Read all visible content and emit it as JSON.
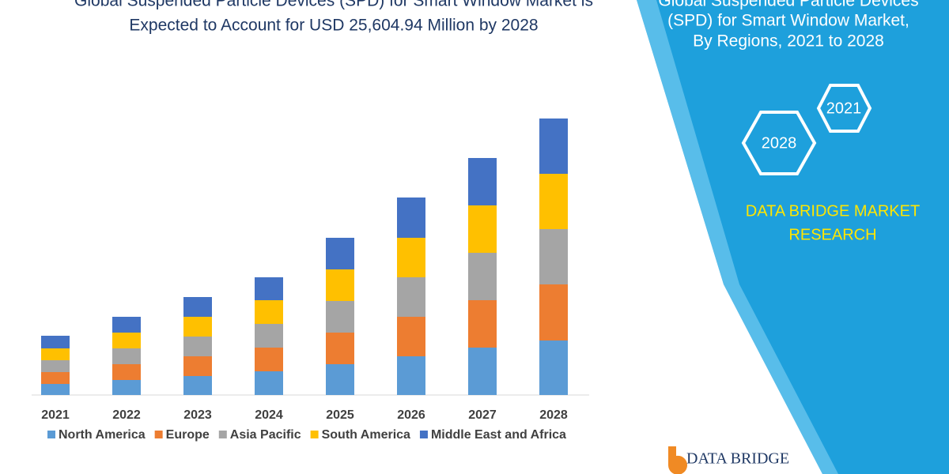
{
  "chart_data": {
    "type": "stacked_bar",
    "title": [
      "Global Suspended Particle Devices (SPD) for Smart Window Market is",
      "Expected to Account for USD 25,604.94 Million by 2028"
    ],
    "categories": [
      "2021",
      "2022",
      "2023",
      "2024",
      "2025",
      "2026",
      "2027",
      "2028"
    ],
    "series": [
      {
        "name": "North America",
        "color": "#5b9bd5",
        "values": [
          14,
          19,
          24,
          30,
          39,
          49,
          60,
          69
        ]
      },
      {
        "name": "Europe",
        "color": "#ed7d31",
        "values": [
          15,
          20,
          25,
          30,
          40,
          50,
          60,
          71
        ]
      },
      {
        "name": "Asia Pacific",
        "color": "#a5a5a5",
        "values": [
          15,
          20,
          25,
          30,
          40,
          50,
          60,
          70
        ]
      },
      {
        "name": "South America",
        "color": "#ffc000",
        "values": [
          15,
          20,
          25,
          30,
          40,
          50,
          60,
          70
        ]
      },
      {
        "name": "Middle East and Africa",
        "color": "#4472c4",
        "values": [
          16,
          20,
          25,
          29,
          40,
          51,
          60,
          70
        ]
      }
    ]
  },
  "panel": {
    "title": [
      "Global Suspended Particle Devices",
      "(SPD) for Smart Window Market,",
      "By Regions, 2021 to 2028"
    ],
    "badges": [
      "2021",
      "2028"
    ],
    "brand": [
      "DATA BRIDGE MARKET",
      "RESEARCH"
    ],
    "logo": "DATA BRIDGE"
  }
}
